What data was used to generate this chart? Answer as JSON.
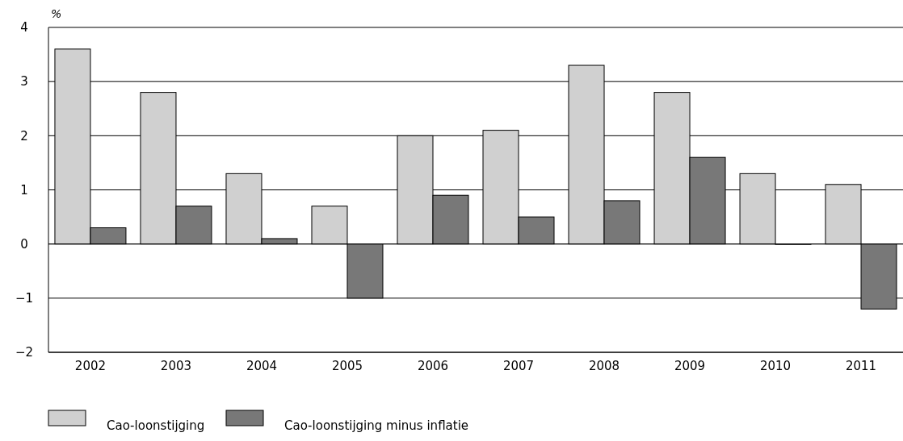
{
  "chart_data": {
    "type": "bar",
    "ylabel": "%",
    "categories": [
      "2002",
      "2003",
      "2004",
      "2005",
      "2006",
      "2007",
      "2008",
      "2009",
      "2010",
      "2011"
    ],
    "series": [
      {
        "name": "Cao-loonstijging",
        "color": "#d0d0d0",
        "values": [
          3.6,
          2.8,
          1.3,
          0.7,
          2.0,
          2.1,
          3.3,
          2.8,
          1.3,
          1.1
        ]
      },
      {
        "name": "Cao-loonstijging minus inflatie",
        "color": "#787878",
        "values": [
          0.3,
          0.7,
          0.1,
          -1.0,
          0.9,
          0.5,
          0.8,
          1.6,
          0.0,
          -1.2
        ]
      }
    ],
    "ylim": [
      -2,
      4
    ],
    "yticks": [
      {
        "value": -2,
        "label": "−2"
      },
      {
        "value": -1,
        "label": "−1"
      },
      0,
      1,
      2,
      3,
      4
    ],
    "grid": "y",
    "legend": "bottom left"
  }
}
